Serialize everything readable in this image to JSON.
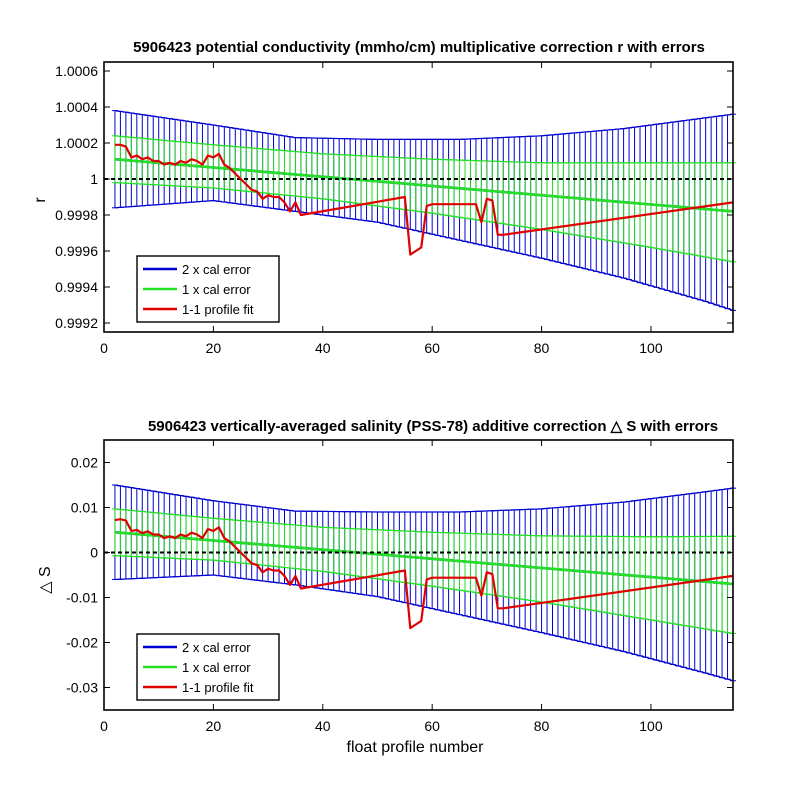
{
  "colors": {
    "two_cal": "#0000d0",
    "one_cal": "#22e022",
    "fit": "#e00000",
    "ref": "#000000"
  },
  "chart_data": [
    {
      "type": "line",
      "title": "5906423 potential conductivity (mmho/cm) multiplicative correction r with errors",
      "xlabel": "",
      "ylabel": "r",
      "xlim": [
        0,
        115
      ],
      "ylim": [
        0.99915,
        1.00065
      ],
      "xticks": [
        0,
        20,
        40,
        60,
        80,
        100
      ],
      "yticks": [
        0.9992,
        0.9994,
        0.9996,
        0.9998,
        1,
        1.0002,
        1.0004,
        1.0006
      ],
      "ytick_labels": [
        "0.9992",
        "0.9994",
        "0.9996",
        "0.9998",
        "1",
        "1.0002",
        "1.0004",
        "1.0006"
      ],
      "reference_line": 1,
      "legend": {
        "position": "bottom-left",
        "entries": [
          "2 x cal error",
          "1 x cal error",
          "1-1 profile fit"
        ]
      },
      "series": [
        {
          "name": "2 x cal error",
          "kind": "errorbar",
          "center": {
            "x": [
              2,
              115
            ],
            "y": [
              1.00011,
              0.99982
            ]
          },
          "upper": {
            "x": [
              2,
              20,
              35,
              50,
              65,
              80,
              95,
              110,
              115
            ],
            "y": [
              1.00038,
              1.0003,
              1.00023,
              1.00022,
              1.00022,
              1.00024,
              1.00028,
              1.00034,
              1.00036
            ]
          },
          "lower": {
            "x": [
              2,
              20,
              35,
              50,
              65,
              80,
              95,
              110,
              115
            ],
            "y": [
              0.99984,
              0.99988,
              0.99982,
              0.99976,
              0.99966,
              0.99956,
              0.99945,
              0.99932,
              0.99927
            ]
          }
        },
        {
          "name": "1 x cal error",
          "kind": "errorbar",
          "center": {
            "x": [
              2,
              115
            ],
            "y": [
              1.00011,
              0.99982
            ]
          },
          "upper": {
            "x": [
              2,
              20,
              40,
              60,
              80,
              100,
              115
            ],
            "y": [
              1.00024,
              1.00019,
              1.00014,
              1.00011,
              1.00009,
              1.00009,
              1.00009
            ]
          },
          "lower": {
            "x": [
              2,
              20,
              40,
              60,
              80,
              100,
              115
            ],
            "y": [
              0.99998,
              0.99995,
              0.99989,
              0.99981,
              0.99972,
              0.99962,
              0.99954
            ]
          }
        },
        {
          "name": "1-1 profile fit",
          "kind": "line",
          "x": [
            2,
            3,
            4,
            5,
            6,
            7,
            8,
            9,
            10,
            11,
            12,
            13,
            14,
            15,
            16,
            17,
            18,
            19,
            20,
            21,
            22,
            23,
            24,
            25,
            26,
            27,
            28,
            29,
            30,
            31,
            32,
            33,
            34,
            35,
            36,
            55,
            56,
            57,
            58,
            59,
            60,
            68,
            69,
            70,
            71,
            72,
            73,
            115
          ],
          "y": [
            1.00019,
            1.00019,
            1.00018,
            1.00012,
            1.00013,
            1.00011,
            1.00012,
            1.0001,
            1.0001,
            1.00008,
            1.00009,
            1.00008,
            1.0001,
            1.00009,
            1.00011,
            1.0001,
            1.00008,
            1.00013,
            1.00012,
            1.00014,
            1.00008,
            1.00006,
            1.00003,
            1.0,
            0.99997,
            0.99994,
            0.99993,
            0.99989,
            0.99991,
            0.9999,
            0.9999,
            0.99987,
            0.99982,
            0.99987,
            0.9998,
            0.9999,
            0.99958,
            0.9996,
            0.99962,
            0.99985,
            0.99986,
            0.99986,
            0.99976,
            0.99989,
            0.99988,
            0.99969,
            0.99969,
            0.99987
          ]
        }
      ]
    },
    {
      "type": "line",
      "title": "5906423 vertically-averaged salinity (PSS-78) additive correction △ S with errors",
      "xlabel": "float profile number",
      "ylabel": "△ S",
      "xlim": [
        0,
        115
      ],
      "ylim": [
        -0.035,
        0.025
      ],
      "xticks": [
        0,
        20,
        40,
        60,
        80,
        100
      ],
      "yticks": [
        -0.03,
        -0.02,
        -0.01,
        0,
        0.01,
        0.02
      ],
      "ytick_labels": [
        "-0.03",
        "-0.02",
        "-0.01",
        "0",
        "0.01",
        "0.02"
      ],
      "reference_line": 0,
      "legend": {
        "position": "bottom-left",
        "entries": [
          "2 x cal error",
          "1 x cal error",
          "1-1 profile fit"
        ]
      },
      "series": [
        {
          "name": "2 x cal error",
          "kind": "errorbar",
          "center": {
            "x": [
              2,
              115
            ],
            "y": [
              0.0045,
              -0.007
            ]
          },
          "upper": {
            "x": [
              2,
              20,
              35,
              50,
              65,
              80,
              95,
              110,
              115
            ],
            "y": [
              0.015,
              0.0115,
              0.0092,
              0.009,
              0.009,
              0.0097,
              0.0112,
              0.0135,
              0.0143
            ]
          },
          "lower": {
            "x": [
              2,
              20,
              35,
              50,
              65,
              80,
              95,
              110,
              115
            ],
            "y": [
              -0.006,
              -0.005,
              -0.0072,
              -0.0098,
              -0.0138,
              -0.0178,
              -0.022,
              -0.0268,
              -0.0285
            ]
          }
        },
        {
          "name": "1 x cal error",
          "kind": "errorbar",
          "center": {
            "x": [
              2,
              115
            ],
            "y": [
              0.0045,
              -0.007
            ]
          },
          "upper": {
            "x": [
              2,
              20,
              40,
              60,
              80,
              100,
              115
            ],
            "y": [
              0.0097,
              0.0076,
              0.0056,
              0.0045,
              0.0037,
              0.0035,
              0.0036
            ]
          },
          "lower": {
            "x": [
              2,
              20,
              40,
              60,
              80,
              100,
              115
            ],
            "y": [
              -0.0007,
              -0.0017,
              -0.0042,
              -0.0075,
              -0.011,
              -0.015,
              -0.018
            ]
          }
        },
        {
          "name": "1-1 profile fit",
          "kind": "line",
          "x": [
            2,
            3,
            4,
            5,
            6,
            7,
            8,
            9,
            10,
            11,
            12,
            13,
            14,
            15,
            16,
            17,
            18,
            19,
            20,
            21,
            22,
            23,
            24,
            25,
            26,
            27,
            28,
            29,
            30,
            31,
            32,
            33,
            34,
            35,
            36,
            55,
            56,
            57,
            58,
            59,
            60,
            68,
            69,
            70,
            71,
            72,
            73,
            115
          ],
          "y": [
            0.0072,
            0.0074,
            0.0071,
            0.0048,
            0.005,
            0.0043,
            0.0047,
            0.004,
            0.004,
            0.0032,
            0.0036,
            0.0032,
            0.004,
            0.0036,
            0.0044,
            0.004,
            0.0032,
            0.0052,
            0.0048,
            0.0056,
            0.0032,
            0.0024,
            0.0012,
            0.0,
            -0.0012,
            -0.0024,
            -0.0028,
            -0.0044,
            -0.0036,
            -0.004,
            -0.004,
            -0.0052,
            -0.0072,
            -0.0052,
            -0.008,
            -0.004,
            -0.0168,
            -0.016,
            -0.0152,
            -0.006,
            -0.0056,
            -0.0056,
            -0.0096,
            -0.0044,
            -0.0048,
            -0.0124,
            -0.0124,
            -0.0052
          ]
        }
      ]
    }
  ]
}
